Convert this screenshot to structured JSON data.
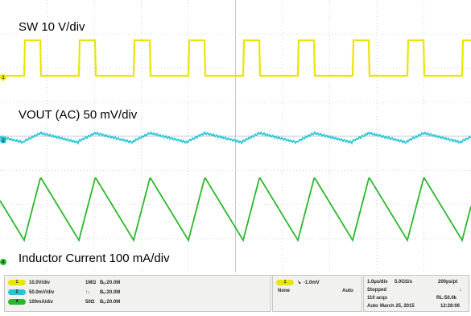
{
  "waveform_labels": {
    "sw": "SW 10 V/div",
    "vout": "VOUT (AC) 50 mV/div",
    "inductor": "Inductor Current 100 mA/div"
  },
  "channels": [
    {
      "id": "1",
      "color": "#e8e600",
      "scale": "10.0V/div",
      "coupling": "1MΩ",
      "bw": "Bᵤ:20.0M"
    },
    {
      "id": "2",
      "color": "#26c4d8",
      "scale": "50.0mV/div",
      "coupling": "",
      "bw": "Bᵤ:20.0M"
    },
    {
      "id": "4",
      "color": "#2ab82a",
      "scale": "100mA/div",
      "coupling": "50Ω",
      "bw": "Bᵤ:20.0M"
    }
  ],
  "trigger": {
    "channel": "1",
    "level": "-1.0mV",
    "source": "None",
    "mode": "Auto"
  },
  "acquisition": {
    "timebase": "1.0µs/div",
    "sample_rate": "5.0GS/s",
    "resolution": "200ps/pt",
    "state": "Stopped",
    "acqs": "110 acqs",
    "record_length": "RL:50.0k",
    "mode": "Auto",
    "date": "March 25, 2015",
    "time": "12:28:06"
  },
  "colors": {
    "grid": "#c8c8c8",
    "sw_trace": "#e8e600",
    "vout_trace": "#26c4d8",
    "inductor_trace": "#2ab82a"
  }
}
